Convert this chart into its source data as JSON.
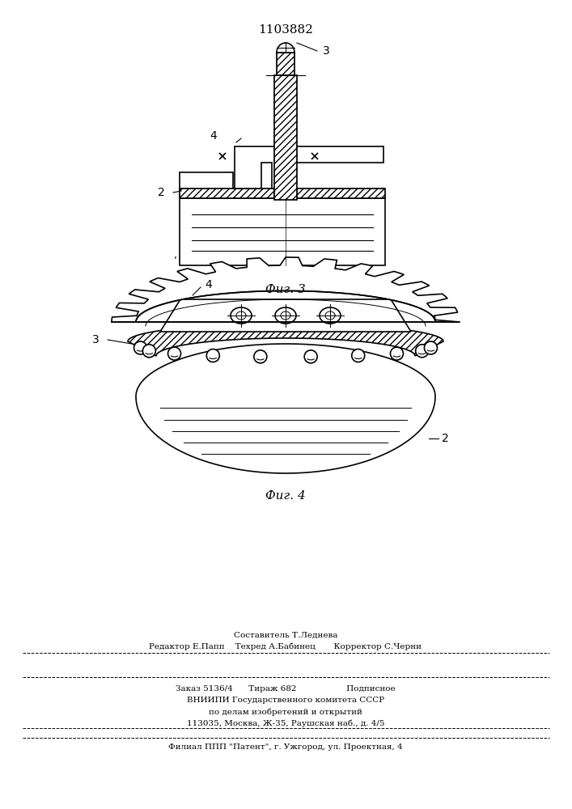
{
  "title": "1103882",
  "fig3_label": "Фиг. 3",
  "fig4_label": "Фиг. 4",
  "footer_line1": "Составитель Т.Леднева",
  "footer_line2": "Редактор Е.Папп    Техред А.Бабинец       Корректор С.Черни",
  "footer_line3": "Заказ 5136/4      Тираж 682                   Подписное",
  "footer_line4": "ВНИИПИ Государственного комитета СССР",
  "footer_line5": "по делам изобретений и открытий",
  "footer_line6": "113035, Москва, Ж-35, Раушская наб., д. 4/5",
  "footer_line7": "Филиал ППП \"Патент\", г. Ужгород, ул. Проектная, 4",
  "bg_color": "#ffffff",
  "line_color": "#000000"
}
